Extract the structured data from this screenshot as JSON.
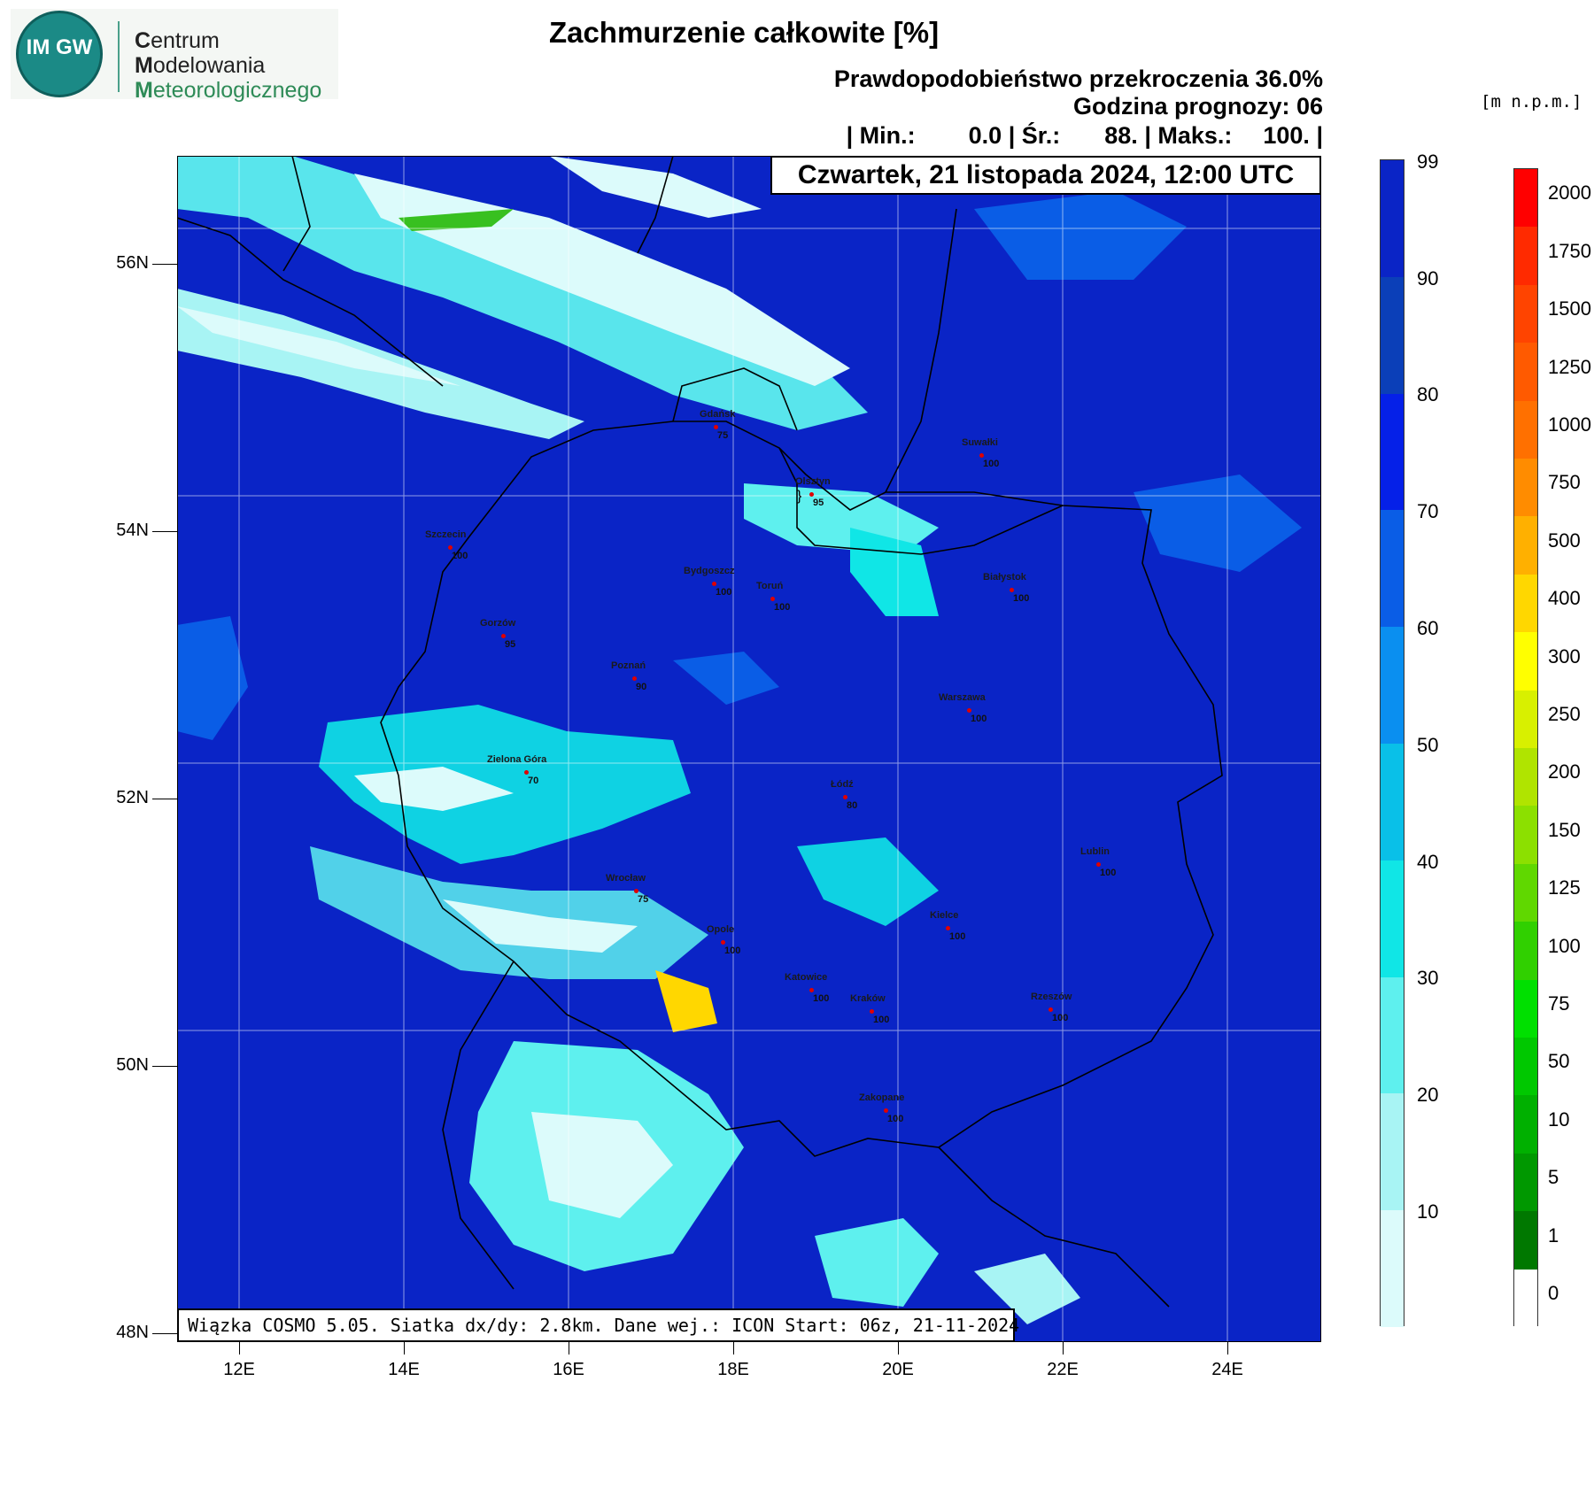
{
  "logo": {
    "emblem_text": "IM GW",
    "org_line1_cap": "C",
    "org_line1_rest": "entrum",
    "org_line2_cap": "M",
    "org_line2_rest": "odelowania",
    "org_line3_cap": "M",
    "org_line3_rest": "eteorologicznego"
  },
  "title": "Zachmurzenie całkowite [%]",
  "subtitle": "Prawdopodobieństwo przekroczenia 36.0%",
  "forecast_hour": "Godzina prognozy: 06",
  "stats": {
    "min_label": "| Min.:",
    "min_value": "0.0",
    "avg_label": "| Śr.:",
    "avg_value": "88.",
    "max_label": "| Maks.:",
    "max_value": "100.",
    "end": "|"
  },
  "date": "Czwartek, 21 listopada 2024, 12:00 UTC",
  "footer": "Wiązka COSMO 5.05. Siatka dx/dy: 2.8km. Dane wej.: ICON Start: 06z, 21-11-2024",
  "lat_labels": [
    "56N",
    "54N",
    "52N",
    "50N",
    "48N"
  ],
  "lon_labels": [
    "12E",
    "14E",
    "16E",
    "18E",
    "20E",
    "22E",
    "24E"
  ],
  "cities": [
    {
      "name": "Gdańsk",
      "value": "75"
    },
    {
      "name": "Suwałki",
      "value": "100"
    },
    {
      "name": "Olsztyn",
      "value": "95"
    },
    {
      "name": "Szczecin",
      "value": "100"
    },
    {
      "name": "Bydgoszcz",
      "value": "100"
    },
    {
      "name": "Toruń",
      "value": "100"
    },
    {
      "name": "Białystok",
      "value": "100"
    },
    {
      "name": "Gorzów",
      "value": "95"
    },
    {
      "name": "Poznań",
      "value": "90"
    },
    {
      "name": "Warszawa",
      "value": "100"
    },
    {
      "name": "Zielona Góra",
      "value": "70"
    },
    {
      "name": "Łódź",
      "value": "80"
    },
    {
      "name": "Lublin",
      "value": "100"
    },
    {
      "name": "Wrocław",
      "value": "75"
    },
    {
      "name": "Kielce",
      "value": "100"
    },
    {
      "name": "Opole",
      "value": "100"
    },
    {
      "name": "Katowice",
      "value": "100"
    },
    {
      "name": "Kraków",
      "value": "100"
    },
    {
      "name": "Rzeszów",
      "value": "100"
    },
    {
      "name": "Zakopane",
      "value": "100"
    }
  ],
  "cloud_scale": {
    "labels": [
      "99",
      "90",
      "80",
      "70",
      "60",
      "50",
      "40",
      "30",
      "20",
      "10"
    ],
    "colors": [
      "#0a24c6",
      "#0b3fb8",
      "#0520e8",
      "#0a5de6",
      "#0a8ff0",
      "#09c0e8",
      "#10e6e6",
      "#5ef0ee",
      "#a8f4f4",
      "#dcfbfb"
    ]
  },
  "terrain_scale": {
    "units": "[m n.p.m.]",
    "labels": [
      "2000",
      "1750",
      "1500",
      "1250",
      "1000",
      "750",
      "500",
      "400",
      "300",
      "250",
      "200",
      "150",
      "125",
      "100",
      "75",
      "50",
      "10",
      "5",
      "1",
      "0"
    ],
    "colors": [
      "#ff0000",
      "#ff2a00",
      "#ff4400",
      "#ff5a00",
      "#ff7000",
      "#ff8c00",
      "#ffb000",
      "#ffd700",
      "#ffff00",
      "#d8f000",
      "#b0e400",
      "#8ce000",
      "#60d800",
      "#30d000",
      "#00e000",
      "#00c800",
      "#00b000",
      "#009800",
      "#007800",
      "#ffffff"
    ]
  }
}
